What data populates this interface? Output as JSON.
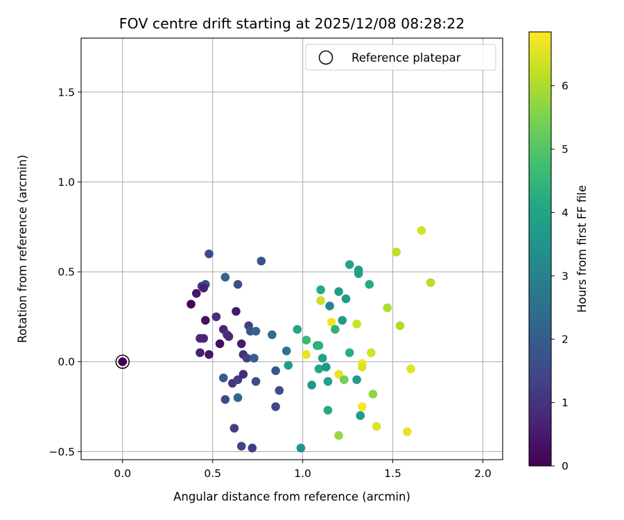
{
  "chart_data": {
    "type": "scatter",
    "title": "FOV centre drift starting at 2025/12/08 08:28:22",
    "xlabel": "Angular distance from reference (arcmin)",
    "ylabel": "Rotation from reference (arcmin)",
    "xlim": [
      -0.23,
      2.11
    ],
    "ylim": [
      -0.545,
      1.8
    ],
    "xticks": [
      0.0,
      0.5,
      1.0,
      1.5,
      2.0
    ],
    "xtick_labels": [
      "0.0",
      "0.5",
      "1.0",
      "1.5",
      "2.0"
    ],
    "yticks": [
      -0.5,
      0.0,
      0.5,
      1.0,
      1.5
    ],
    "ytick_labels": [
      "−0.5",
      "0.0",
      "0.5",
      "1.0",
      "1.5"
    ],
    "grid": true,
    "legend": {
      "placement": "top-right",
      "entries": [
        "Reference platepar"
      ]
    },
    "reference_point": {
      "x": 0.0,
      "y": 0.0
    },
    "colorbar": {
      "label": "Hours from first FF file",
      "colormap": "viridis",
      "range": [
        0,
        6.85
      ],
      "ticks": [
        0,
        1,
        2,
        3,
        4,
        5,
        6
      ],
      "tick_labels": [
        "0",
        "1",
        "2",
        "3",
        "4",
        "5",
        "6"
      ]
    },
    "points": [
      {
        "x": 0.0,
        "y": 0.0,
        "h": 0.0
      },
      {
        "x": 0.38,
        "y": 0.32,
        "h": 0.05
      },
      {
        "x": 0.41,
        "y": 0.38,
        "h": 0.4
      },
      {
        "x": 0.44,
        "y": 0.42,
        "h": 1.2
      },
      {
        "x": 0.46,
        "y": 0.43,
        "h": 1.5
      },
      {
        "x": 0.45,
        "y": 0.41,
        "h": 0.6
      },
      {
        "x": 0.48,
        "y": 0.6,
        "h": 1.6
      },
      {
        "x": 0.46,
        "y": 0.23,
        "h": 0.3
      },
      {
        "x": 0.52,
        "y": 0.25,
        "h": 0.9
      },
      {
        "x": 0.43,
        "y": 0.13,
        "h": 0.8
      },
      {
        "x": 0.45,
        "y": 0.13,
        "h": 0.7
      },
      {
        "x": 0.43,
        "y": 0.05,
        "h": 0.6
      },
      {
        "x": 0.48,
        "y": 0.04,
        "h": 0.4
      },
      {
        "x": 0.54,
        "y": 0.1,
        "h": 0.2
      },
      {
        "x": 0.56,
        "y": 0.18,
        "h": 0.7
      },
      {
        "x": 0.58,
        "y": 0.15,
        "h": 1.0
      },
      {
        "x": 0.59,
        "y": 0.14,
        "h": 0.8
      },
      {
        "x": 0.57,
        "y": 0.47,
        "h": 2.2
      },
      {
        "x": 0.64,
        "y": 0.43,
        "h": 1.7
      },
      {
        "x": 0.63,
        "y": 0.28,
        "h": 0.5
      },
      {
        "x": 0.77,
        "y": 0.56,
        "h": 1.8
      },
      {
        "x": 0.66,
        "y": 0.1,
        "h": 0.5
      },
      {
        "x": 0.7,
        "y": 0.2,
        "h": 1.2
      },
      {
        "x": 0.71,
        "y": 0.17,
        "h": 1.8
      },
      {
        "x": 0.74,
        "y": 0.17,
        "h": 2.2
      },
      {
        "x": 0.67,
        "y": 0.04,
        "h": 1.0
      },
      {
        "x": 0.69,
        "y": 0.02,
        "h": 1.3
      },
      {
        "x": 0.73,
        "y": 0.02,
        "h": 2.0
      },
      {
        "x": 0.56,
        "y": -0.09,
        "h": 1.9
      },
      {
        "x": 0.61,
        "y": -0.12,
        "h": 1.1
      },
      {
        "x": 0.64,
        "y": -0.1,
        "h": 1.2
      },
      {
        "x": 0.67,
        "y": -0.07,
        "h": 0.9
      },
      {
        "x": 0.57,
        "y": -0.21,
        "h": 1.5
      },
      {
        "x": 0.64,
        "y": -0.2,
        "h": 2.3
      },
      {
        "x": 0.74,
        "y": -0.11,
        "h": 1.6
      },
      {
        "x": 0.62,
        "y": -0.37,
        "h": 1.3
      },
      {
        "x": 0.66,
        "y": -0.47,
        "h": 1.4
      },
      {
        "x": 0.72,
        "y": -0.48,
        "h": 1.2
      },
      {
        "x": 0.83,
        "y": 0.15,
        "h": 2.4
      },
      {
        "x": 0.85,
        "y": -0.05,
        "h": 1.8
      },
      {
        "x": 0.87,
        "y": -0.16,
        "h": 1.6
      },
      {
        "x": 0.85,
        "y": -0.25,
        "h": 1.4
      },
      {
        "x": 0.91,
        "y": 0.06,
        "h": 2.6
      },
      {
        "x": 0.92,
        "y": -0.02,
        "h": 3.8
      },
      {
        "x": 0.97,
        "y": 0.18,
        "h": 4.0
      },
      {
        "x": 1.02,
        "y": 0.12,
        "h": 4.6
      },
      {
        "x": 1.02,
        "y": 0.04,
        "h": 6.6
      },
      {
        "x": 1.05,
        "y": -0.13,
        "h": 3.6
      },
      {
        "x": 0.99,
        "y": -0.48,
        "h": 3.5
      },
      {
        "x": 1.1,
        "y": 0.4,
        "h": 4.2
      },
      {
        "x": 1.1,
        "y": 0.34,
        "h": 6.3
      },
      {
        "x": 1.15,
        "y": 0.31,
        "h": 3.1
      },
      {
        "x": 1.16,
        "y": 0.22,
        "h": 6.7
      },
      {
        "x": 1.08,
        "y": 0.09,
        "h": 4.2
      },
      {
        "x": 1.09,
        "y": 0.09,
        "h": 4.4
      },
      {
        "x": 1.11,
        "y": 0.02,
        "h": 3.9
      },
      {
        "x": 1.09,
        "y": -0.04,
        "h": 4.1
      },
      {
        "x": 1.13,
        "y": -0.03,
        "h": 3.6
      },
      {
        "x": 1.14,
        "y": -0.11,
        "h": 3.9
      },
      {
        "x": 1.14,
        "y": -0.27,
        "h": 4.2
      },
      {
        "x": 1.18,
        "y": 0.18,
        "h": 4.4
      },
      {
        "x": 1.2,
        "y": 0.39,
        "h": 3.8
      },
      {
        "x": 1.22,
        "y": 0.23,
        "h": 3.7
      },
      {
        "x": 1.24,
        "y": 0.35,
        "h": 3.7
      },
      {
        "x": 1.2,
        "y": -0.07,
        "h": 6.6
      },
      {
        "x": 1.23,
        "y": -0.1,
        "h": 5.4
      },
      {
        "x": 1.2,
        "y": -0.41,
        "h": 5.8
      },
      {
        "x": 1.26,
        "y": 0.54,
        "h": 4.0
      },
      {
        "x": 1.26,
        "y": 0.05,
        "h": 4.3
      },
      {
        "x": 1.31,
        "y": 0.51,
        "h": 3.8
      },
      {
        "x": 1.31,
        "y": 0.49,
        "h": 3.9
      },
      {
        "x": 1.3,
        "y": 0.21,
        "h": 6.3
      },
      {
        "x": 1.3,
        "y": -0.1,
        "h": 3.7
      },
      {
        "x": 1.32,
        "y": -0.3,
        "h": 4.4
      },
      {
        "x": 1.32,
        "y": -0.3,
        "h": 3.8
      },
      {
        "x": 1.33,
        "y": -0.01,
        "h": 6.8
      },
      {
        "x": 1.33,
        "y": -0.03,
        "h": 6.5
      },
      {
        "x": 1.33,
        "y": -0.25,
        "h": 6.8
      },
      {
        "x": 1.37,
        "y": 0.43,
        "h": 4.2
      },
      {
        "x": 1.38,
        "y": 0.05,
        "h": 6.4
      },
      {
        "x": 1.39,
        "y": -0.18,
        "h": 5.7
      },
      {
        "x": 1.41,
        "y": -0.36,
        "h": 6.5
      },
      {
        "x": 1.47,
        "y": 0.3,
        "h": 6.0
      },
      {
        "x": 1.52,
        "y": 0.61,
        "h": 6.2
      },
      {
        "x": 1.54,
        "y": 0.2,
        "h": 6.0
      },
      {
        "x": 1.58,
        "y": -0.39,
        "h": 6.6
      },
      {
        "x": 1.6,
        "y": -0.04,
        "h": 6.5
      },
      {
        "x": 1.66,
        "y": 0.73,
        "h": 6.4
      },
      {
        "x": 1.71,
        "y": 0.44,
        "h": 6.1
      }
    ]
  }
}
